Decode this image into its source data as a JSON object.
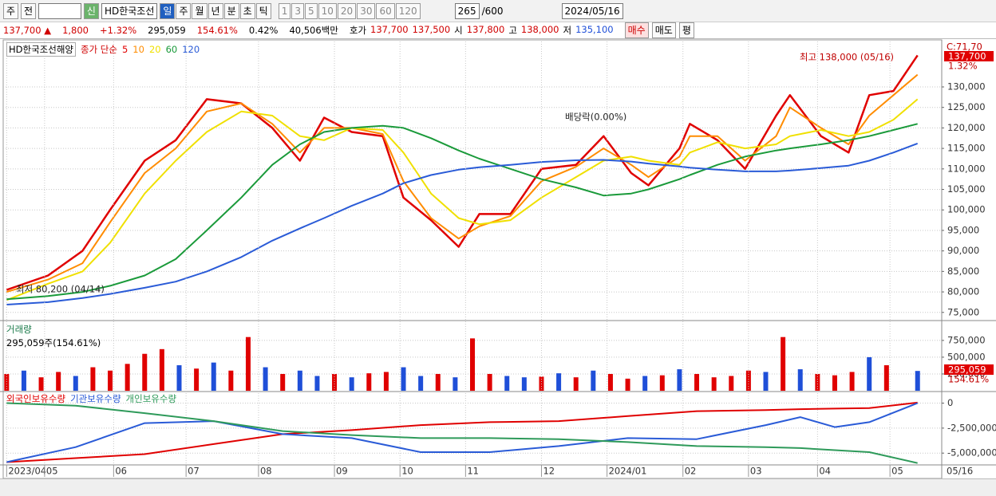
{
  "toolbar": {
    "period": "주",
    "prev": "전",
    "code": "009540",
    "credit": "신",
    "name": "HD한국조선",
    "periods": [
      "일",
      "주",
      "월",
      "년",
      "분",
      "초",
      "틱"
    ],
    "minutes": [
      "1",
      "3",
      "5",
      "10",
      "20",
      "30",
      "60",
      "120"
    ],
    "count": "265",
    "max": "/600",
    "date": "2024/05/16"
  },
  "info_bar": {
    "price": "137,700 ▲",
    "change": "1,800",
    "rate": "+1.32%",
    "volume": "295,059",
    "volume_rate": "154.61%",
    "turnover": "0.42%",
    "amount": "40,506백만",
    "ask_label": "호가",
    "ask": "137,700",
    "bid": "137,500",
    "open_label": "시",
    "open": "137,800",
    "high_label": "고",
    "high": "138,000",
    "low_label": "저",
    "low": "135,100",
    "buy": "매수",
    "sell": "매도",
    "avg": "평"
  },
  "chart_data": [
    {
      "type": "line",
      "legend_title": "HD한국조선해양",
      "legend_label": "종가 단순",
      "x": [
        0,
        12,
        22,
        30,
        40,
        49,
        58,
        68,
        77,
        85,
        92,
        100,
        109,
        115,
        123,
        131,
        137,
        146,
        155,
        165,
        173,
        181,
        186,
        195,
        198,
        206,
        214,
        223,
        227,
        236,
        244,
        250,
        257,
        264
      ],
      "series": [
        {
          "name": "5",
          "color": "#e00000",
          "values": [
            80500,
            84000,
            90000,
            100000,
            112000,
            117000,
            127000,
            126000,
            120000,
            112000,
            122500,
            119000,
            118000,
            103000,
            97500,
            91000,
            99000,
            99000,
            110000,
            111000,
            118000,
            109000,
            106000,
            115000,
            121000,
            117000,
            110000,
            123000,
            128000,
            118000,
            114000,
            128000,
            129000,
            137700
          ]
        },
        {
          "name": "10",
          "color": "#ff8c00",
          "values": [
            80000,
            83000,
            87000,
            97000,
            109000,
            115000,
            124000,
            126000,
            121000,
            114000,
            120000,
            120000,
            118500,
            107000,
            98000,
            93000,
            96000,
            98500,
            107000,
            110500,
            115000,
            111000,
            108000,
            113000,
            118000,
            118000,
            112000,
            118000,
            125000,
            120000,
            116000,
            123000,
            128000,
            133000
          ]
        },
        {
          "name": "20",
          "color": "#f0e000",
          "values": [
            78000,
            82000,
            85000,
            92000,
            104000,
            112000,
            119000,
            124000,
            123000,
            118000,
            117000,
            120000,
            119500,
            114000,
            104000,
            98000,
            96500,
            97500,
            103000,
            108000,
            112000,
            113000,
            112000,
            111000,
            114000,
            116500,
            115000,
            116000,
            118000,
            119500,
            118000,
            119000,
            122000,
            127000
          ]
        },
        {
          "name": "60",
          "color": "#1a9a3a",
          "values": [
            78200,
            79000,
            80000,
            81500,
            84000,
            88000,
            95000,
            103000,
            111000,
            116000,
            119000,
            120000,
            120500,
            120000,
            117500,
            114500,
            112500,
            110000,
            107500,
            105500,
            103500,
            104000,
            105000,
            107500,
            108500,
            111000,
            113000,
            114500,
            115000,
            116000,
            117000,
            118000,
            119500,
            121000
          ]
        },
        {
          "name": "120",
          "color": "#2a5bd7",
          "values": [
            76900,
            77500,
            78500,
            79500,
            81000,
            82500,
            85000,
            88500,
            92500,
            95500,
            98000,
            101000,
            104000,
            106500,
            108500,
            109800,
            110400,
            111000,
            111700,
            112100,
            112200,
            111800,
            111300,
            110600,
            110300,
            109800,
            109400,
            109400,
            109600,
            110200,
            110800,
            112000,
            114000,
            116200
          ]
        }
      ],
      "xlim": [
        -1,
        271
      ],
      "ylim": [
        73400,
        140500
      ],
      "yticks": [
        {
          "value": 75000,
          "label": "75,000"
        },
        {
          "value": 80000,
          "label": "80,000"
        },
        {
          "value": 85000,
          "label": "85,000"
        },
        {
          "value": 90000,
          "label": "90,000"
        },
        {
          "value": 95000,
          "label": "95,000"
        },
        {
          "value": 100000,
          "label": "100,000"
        },
        {
          "value": 105000,
          "label": "105,000"
        },
        {
          "value": 110000,
          "label": "110,000"
        },
        {
          "value": 115000,
          "label": "115,000"
        },
        {
          "value": 120000,
          "label": "120,000"
        },
        {
          "value": 125000,
          "label": "125,000"
        },
        {
          "value": 130000,
          "label": "130,000"
        }
      ],
      "grid": true,
      "annotations": {
        "high": "최고 138,000 (05/16)",
        "low": "최저 80,200 (04/14)",
        "dividend": "배당락(0.00%)"
      },
      "right_labels": {
        "top": "C:71,70",
        "price": "137,700",
        "rate": "1.32%"
      }
    },
    {
      "type": "bar",
      "title": "거래량",
      "summary": "295,059주(154.61%)",
      "x": [
        0,
        5,
        10,
        15,
        20,
        25,
        30,
        35,
        40,
        45,
        50,
        55,
        60,
        65,
        70,
        75,
        80,
        85,
        90,
        95,
        100,
        105,
        110,
        115,
        120,
        125,
        130,
        135,
        140,
        145,
        150,
        155,
        160,
        165,
        170,
        175,
        180,
        185,
        190,
        195,
        200,
        205,
        210,
        215,
        220,
        225,
        230,
        235,
        240,
        245,
        250,
        255,
        264
      ],
      "values": [
        250000,
        300000,
        200000,
        280000,
        220000,
        350000,
        300000,
        400000,
        550000,
        620000,
        380000,
        330000,
        420000,
        300000,
        800000,
        350000,
        250000,
        300000,
        220000,
        250000,
        200000,
        260000,
        280000,
        350000,
        220000,
        250000,
        200000,
        780000,
        250000,
        220000,
        200000,
        210000,
        260000,
        200000,
        300000,
        250000,
        180000,
        220000,
        230000,
        320000,
        250000,
        200000,
        220000,
        300000,
        280000,
        800000,
        320000,
        250000,
        230000,
        280000,
        500000,
        380000,
        295059
      ],
      "colors": [
        "#e00000",
        "#1f4fd8",
        "#e00000",
        "#e00000",
        "#1f4fd8",
        "#e00000",
        "#e00000",
        "#e00000",
        "#e00000",
        "#e00000",
        "#1f4fd8",
        "#e00000",
        "#1f4fd8",
        "#e00000",
        "#e00000",
        "#1f4fd8",
        "#e00000",
        "#1f4fd8",
        "#1f4fd8",
        "#e00000",
        "#1f4fd8",
        "#e00000",
        "#e00000",
        "#1f4fd8",
        "#1f4fd8",
        "#e00000",
        "#1f4fd8",
        "#e00000",
        "#e00000",
        "#1f4fd8",
        "#1f4fd8",
        "#e00000",
        "#1f4fd8",
        "#e00000",
        "#1f4fd8",
        "#e00000",
        "#e00000",
        "#1f4fd8",
        "#e00000",
        "#1f4fd8",
        "#e00000",
        "#e00000",
        "#e00000",
        "#e00000",
        "#1f4fd8",
        "#e00000",
        "#1f4fd8",
        "#e00000",
        "#e00000",
        "#e00000",
        "#1f4fd8",
        "#e00000",
        "#1f4fd8"
      ],
      "xlim": [
        -1,
        271
      ],
      "ylim": [
        0,
        1010000
      ],
      "yticks": [
        {
          "value": 250000,
          "label": "250,000"
        },
        {
          "value": 500000,
          "label": "500,000"
        },
        {
          "value": 750000,
          "label": "750,000"
        }
      ],
      "grid": true,
      "right_labels": {
        "value": "295,059",
        "rate": "154.61%"
      }
    },
    {
      "type": "line",
      "x": [
        0,
        20,
        40,
        60,
        80,
        100,
        120,
        140,
        160,
        180,
        200,
        220,
        230,
        240,
        250,
        264
      ],
      "series": [
        {
          "name": "외국인보유수량",
          "color": "#e00000",
          "values": [
            -5900000,
            -5500000,
            -5100000,
            -4100000,
            -3100000,
            -2700000,
            -2200000,
            -1900000,
            -1800000,
            -1300000,
            -800000,
            -700000,
            -600000,
            -550000,
            -500000,
            50000
          ]
        },
        {
          "name": "기관보유수량",
          "color": "#2a5bd7",
          "values": [
            -5900000,
            -4400000,
            -2000000,
            -1800000,
            -3100000,
            -3500000,
            -4900000,
            -4900000,
            -4300000,
            -3500000,
            -3600000,
            -2200000,
            -1400000,
            -2400000,
            -1900000,
            0
          ]
        },
        {
          "name": "개인보유수량",
          "color": "#2e9a5a",
          "values": [
            0,
            -250000,
            -1000000,
            -1800000,
            -2800000,
            -3200000,
            -3500000,
            -3500000,
            -3600000,
            -3900000,
            -4300000,
            -4400000,
            -4500000,
            -4700000,
            -4900000,
            -6000000
          ]
        }
      ],
      "xlim": [
        -1,
        271
      ],
      "ylim": [
        -6100000,
        1000000
      ],
      "yticks": [
        0,
        {
          "value": -2500000,
          "label": "-2,500,000"
        },
        {
          "value": -5000000,
          "label": "-5,000,000"
        }
      ],
      "xticks": [
        {
          "value": 0,
          "label": "2023/04"
        },
        {
          "value": 11,
          "label": "05"
        },
        {
          "value": 31,
          "label": "06"
        },
        {
          "value": 52,
          "label": "07"
        },
        {
          "value": 73,
          "label": "08"
        },
        {
          "value": 95,
          "label": "09"
        },
        {
          "value": 114,
          "label": "10"
        },
        {
          "value": 133,
          "label": "11"
        },
        {
          "value": 155,
          "label": "12"
        },
        {
          "value": 174,
          "label": "2024/01"
        },
        {
          "value": 196,
          "label": "02"
        },
        {
          "value": 215,
          "label": "03"
        },
        {
          "value": 235,
          "label": "04"
        },
        {
          "value": 256,
          "label": "05"
        }
      ],
      "grid": true,
      "cursor_label": "05/16"
    }
  ]
}
